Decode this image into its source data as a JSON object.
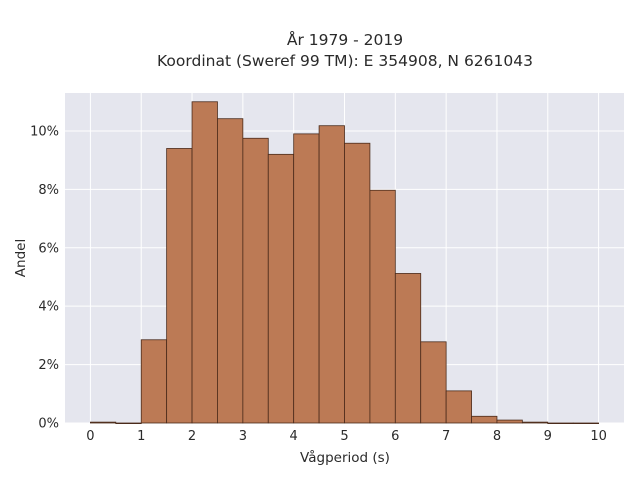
{
  "chart_data": {
    "type": "bar",
    "title_lines": [
      "År 1979 - 2019",
      "Koordinat (Sweref 99 TM): E 354908, N 6261043"
    ],
    "xlabel": "Vågperiod (s)",
    "ylabel": "Andel",
    "bin_width": 0.5,
    "bins_start": [
      0,
      0.5,
      1,
      1.5,
      2,
      2.5,
      3,
      3.5,
      4,
      4.5,
      5,
      5.5,
      6,
      6.5,
      7,
      7.5,
      8,
      8.5,
      9,
      9.5
    ],
    "values": [
      0.03,
      0.0,
      2.85,
      9.4,
      11.0,
      10.42,
      9.75,
      9.2,
      9.9,
      10.18,
      9.58,
      7.97,
      5.12,
      2.78,
      1.1,
      0.23,
      0.1,
      0.03,
      0.0,
      0.0
    ],
    "xlim": [
      -0.5,
      10.5
    ],
    "ylim": [
      0,
      11.3
    ],
    "xticks": [
      0,
      1,
      2,
      3,
      4,
      5,
      6,
      7,
      8,
      9,
      10
    ],
    "xtick_labels": [
      "0",
      "1",
      "2",
      "3",
      "4",
      "5",
      "6",
      "7",
      "8",
      "9",
      "10"
    ],
    "yticks": [
      0,
      2,
      4,
      6,
      8,
      10
    ],
    "ytick_labels": [
      "0%",
      "2%",
      "4%",
      "6%",
      "8%",
      "10%"
    ],
    "grid": true,
    "colors": {
      "bar_fill": "#bc7a55",
      "bar_edge": "#4a2a1a",
      "plot_bg": "#e5e6ee",
      "grid": "#ffffff",
      "text": "#2a2a2a"
    }
  }
}
